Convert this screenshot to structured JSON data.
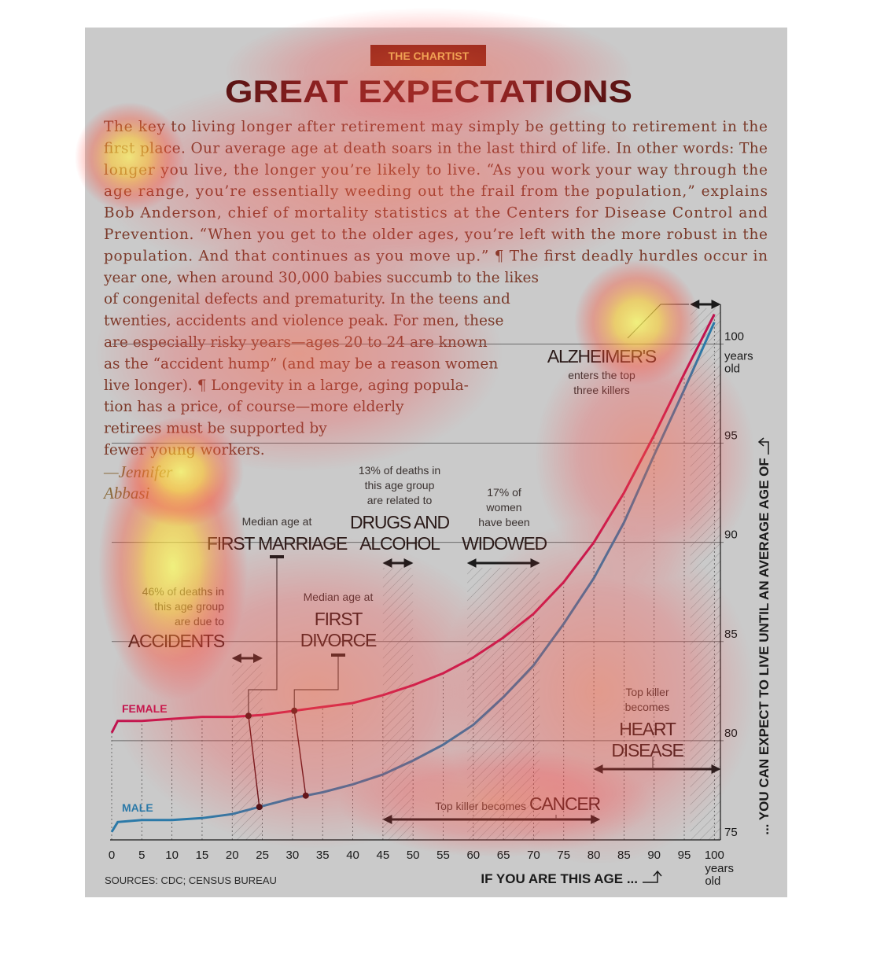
{
  "chart_data": {
    "type": "line",
    "kicker": "THE CHARTIST",
    "title": "GREAT EXPECTATIONS",
    "body": [
      "The key to living longer after retirement may simply be getting to retirement in the",
      "first place. Our average age at death soars in the last third of life. In other words: The",
      "longer you live, the longer you’re likely to live. “As you work your way through the",
      "age range, you’re essentially weeding out the frail from the population,” explains",
      "Bob Anderson, chief of mortality statistics at the Centers for Disease Control and",
      "Prevention. “When you get to the older ages, you’re left with the more robust in the",
      "population. And that continues as you move up.” ¶ The first deadly hurdles occur in",
      "year one, when around 30,000 babies succumb to the likes",
      "of congenital defects and prematurity. In the teens and",
      "twenties, accidents and violence peak. For men, these",
      "are especially risky years—ages 20 to 24 are known",
      "as the “accident hump” (and may be a reason women",
      "live longer). ¶ Longevity in a large, aging popula-",
      "tion has a price, of course—more elderly",
      "retirees must be supported by",
      "fewer young workers."
    ],
    "byline": [
      "—Jennifer",
      "Abbasi"
    ],
    "x_label": "IF YOU ARE THIS AGE ...",
    "y_label": "... YOU CAN EXPECT TO LIVE UNTIL AN AVERAGE AGE OF",
    "unit_label": [
      "years",
      "old"
    ],
    "source": "SOURCES: CDC; CENSUS BUREAU",
    "x": [
      0,
      1,
      5,
      10,
      15,
      20,
      25,
      30,
      35,
      40,
      45,
      50,
      55,
      60,
      65,
      70,
      75,
      80,
      85,
      90,
      95,
      100
    ],
    "series": [
      {
        "name": "FEMALE",
        "color": "#c0134f",
        "values": [
          80.4,
          81.0,
          81.0,
          81.1,
          81.2,
          81.2,
          81.3,
          81.5,
          81.7,
          81.9,
          82.3,
          82.8,
          83.4,
          84.2,
          85.2,
          86.4,
          88.0,
          90.0,
          92.5,
          95.4,
          98.5,
          101.5
        ]
      },
      {
        "name": "MALE",
        "color": "#2b79a8",
        "values": [
          75.4,
          75.9,
          76.0,
          76.0,
          76.1,
          76.3,
          76.7,
          77.1,
          77.4,
          77.8,
          78.3,
          79.0,
          79.8,
          80.8,
          82.2,
          83.8,
          85.9,
          88.2,
          91.0,
          94.4,
          97.7,
          101.1
        ]
      }
    ],
    "xlim": [
      0,
      101
    ],
    "ylim": [
      75,
      102
    ],
    "xticks": [
      0,
      5,
      10,
      15,
      20,
      25,
      30,
      35,
      40,
      45,
      50,
      55,
      60,
      65,
      70,
      75,
      80,
      85,
      90,
      95,
      100
    ],
    "yticks": [
      75,
      80,
      85,
      90,
      95,
      100
    ],
    "grid": true,
    "annotations": [
      {
        "note": [
          "46% of deaths in",
          "this age group",
          "are due to"
        ],
        "label": [
          "ACCIDENTS"
        ],
        "range": [
          20,
          25
        ]
      },
      {
        "note": [
          "Median age at"
        ],
        "label": [
          "FIRST MARRIAGE"
        ],
        "female_age": 22.7,
        "male_age": 24.5
      },
      {
        "note": [
          "13% of deaths in",
          "this age group",
          "are related to"
        ],
        "label": [
          "DRUGS AND",
          "ALCOHOL"
        ],
        "range": [
          45,
          50
        ]
      },
      {
        "note": [
          "Median age at"
        ],
        "label": [
          "FIRST",
          "DIVORCE"
        ],
        "female_age": 30.3,
        "male_age": 32.2
      },
      {
        "note": [
          "17% of",
          "women",
          "have been"
        ],
        "label": [
          "WIDOWED"
        ],
        "range": [
          59,
          71
        ]
      },
      {
        "note": [
          "enters the top",
          "three killers"
        ],
        "label": [
          "ALZHEIMER'S"
        ],
        "range": [
          96,
          101
        ]
      },
      {
        "note": [
          "Top killer",
          "becomes"
        ],
        "label": [
          "HEART",
          "DISEASE"
        ],
        "range": [
          80,
          101
        ]
      },
      {
        "note": [
          "Top killer becomes"
        ],
        "label": [
          "CANCER"
        ],
        "range": [
          45,
          81
        ]
      }
    ]
  }
}
